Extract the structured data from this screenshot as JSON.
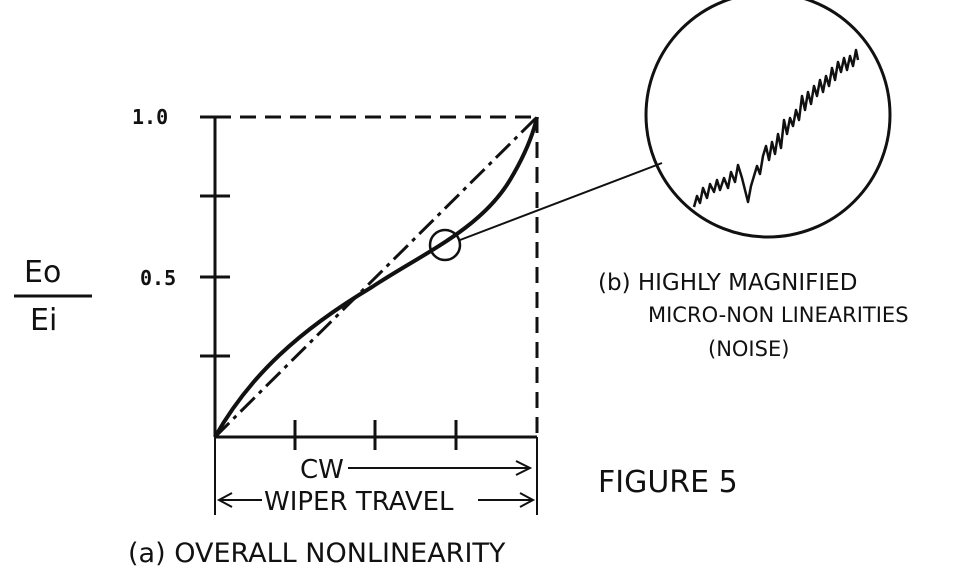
{
  "chart": {
    "y_label_top": "Eo",
    "y_label_bottom": "Ei",
    "y_ticks": [
      "1.0",
      "0.5"
    ],
    "direction_label": "CW",
    "travel_label": "WIPER TRAVEL",
    "caption_a": "(a) OVERALL NONLINEARITY"
  },
  "inset": {
    "caption_line1": "(b) HIGHLY MAGNIFIED",
    "caption_line2": "MICRO-NON LINEARITIES",
    "caption_line3": "(NOISE)"
  },
  "figure_label": "FIGURE 5",
  "colors": {
    "ink": "#111111",
    "paper": "#ffffff"
  }
}
